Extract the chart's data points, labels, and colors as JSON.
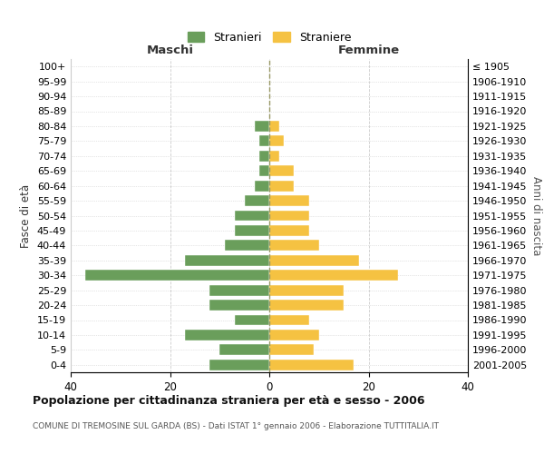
{
  "age_groups": [
    "100+",
    "95-99",
    "90-94",
    "85-89",
    "80-84",
    "75-79",
    "70-74",
    "65-69",
    "60-64",
    "55-59",
    "50-54",
    "45-49",
    "40-44",
    "35-39",
    "30-34",
    "25-29",
    "20-24",
    "15-19",
    "10-14",
    "5-9",
    "0-4"
  ],
  "birth_years": [
    "≤ 1905",
    "1906-1910",
    "1911-1915",
    "1916-1920",
    "1921-1925",
    "1926-1930",
    "1931-1935",
    "1936-1940",
    "1941-1945",
    "1946-1950",
    "1951-1955",
    "1956-1960",
    "1961-1965",
    "1966-1970",
    "1971-1975",
    "1976-1980",
    "1981-1985",
    "1986-1990",
    "1991-1995",
    "1996-2000",
    "2001-2005"
  ],
  "maschi": [
    0,
    0,
    0,
    0,
    3,
    2,
    2,
    2,
    3,
    5,
    7,
    7,
    9,
    17,
    37,
    12,
    12,
    7,
    17,
    10,
    12
  ],
  "femmine": [
    0,
    0,
    0,
    0,
    2,
    3,
    2,
    5,
    5,
    8,
    8,
    8,
    10,
    18,
    26,
    15,
    15,
    8,
    10,
    9,
    17
  ],
  "color_maschi": "#6a9e5b",
  "color_femmine": "#f5c242",
  "xlim": [
    -40,
    40
  ],
  "xticks": [
    -40,
    -20,
    0,
    20,
    40
  ],
  "xticklabels": [
    "40",
    "20",
    "0",
    "20",
    "40"
  ],
  "title": "Popolazione per cittadinanza straniera per età e sesso - 2006",
  "subtitle": "COMUNE DI TREMOSINE SUL GARDA (BS) - Dati ISTAT 1° gennaio 2006 - Elaborazione TUTTITALIA.IT",
  "ylabel_left": "Fasce di età",
  "ylabel_right": "Anni di nascita",
  "label_maschi": "Maschi",
  "label_femmine": "Femmine",
  "legend_stranieri": "Stranieri",
  "legend_straniere": "Straniere",
  "background_color": "#ffffff",
  "grid_color": "#cccccc"
}
